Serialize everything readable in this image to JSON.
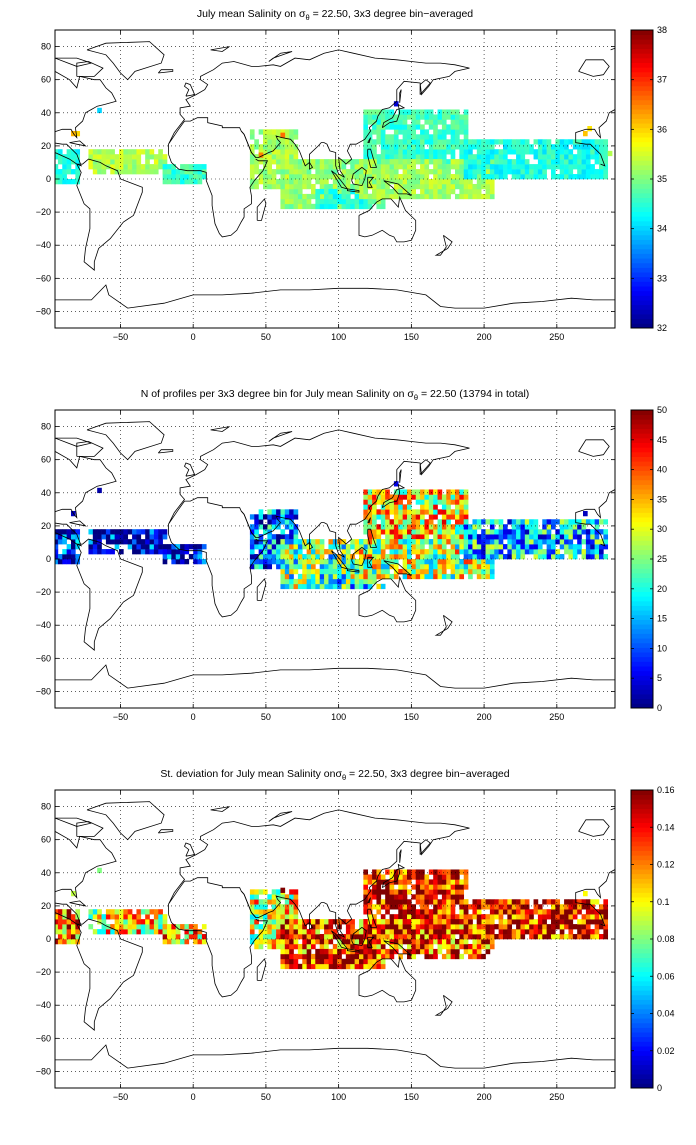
{
  "figure": {
    "background": "#ffffff"
  },
  "chart_data": [
    {
      "type": "heatmap",
      "title": {
        "prefix": "July mean Salinity on ",
        "sigma": "σ",
        "sub": "θ",
        "suffix": " = 22.50, 3x3 degree bin−averaged"
      },
      "xlabel": "",
      "ylabel": "",
      "xlim": [
        -95,
        290
      ],
      "ylim": [
        -90,
        90
      ],
      "xticks": [
        -50,
        0,
        50,
        100,
        150,
        200,
        250
      ],
      "yticks": [
        -80,
        -60,
        -40,
        -20,
        0,
        20,
        40,
        60,
        80
      ],
      "grid": true,
      "colormap": "jet",
      "clim": [
        32,
        38
      ],
      "colorbar_ticks": [
        32,
        33,
        34,
        35,
        36,
        37,
        38
      ],
      "legend": "colorbar right",
      "regions": [
        {
          "x": [
            -95,
            -78
          ],
          "y": [
            -1,
            16
          ],
          "value": 34.4
        },
        {
          "x": [
            -70,
            -20
          ],
          "y": [
            3,
            18
          ],
          "value": 35.3
        },
        {
          "x": [
            -20,
            8
          ],
          "y": [
            -1,
            7
          ],
          "value": 34.6
        },
        {
          "x": [
            40,
            70
          ],
          "y": [
            -5,
            28
          ],
          "value": 35.2
        },
        {
          "x": [
            60,
            130
          ],
          "y": [
            -18,
            10
          ],
          "value": 35.1
        },
        {
          "x": [
            85,
            122
          ],
          "y": [
            -18,
            -6
          ],
          "value": 34.5
        },
        {
          "x": [
            118,
            188
          ],
          "y": [
            10,
            40
          ],
          "value": 34.6
        },
        {
          "x": [
            115,
            205
          ],
          "y": [
            -12,
            12
          ],
          "value": 35.2
        },
        {
          "x": [
            188,
            285
          ],
          "y": [
            0,
            24
          ],
          "value": 34.4
        }
      ],
      "spots": [
        {
          "x": -84,
          "y": 26,
          "value": 36.2
        },
        {
          "x": -81,
          "y": 26,
          "value": 36.0
        },
        {
          "x": -66,
          "y": 40,
          "value": 34.0
        },
        {
          "x": 45,
          "y": 13,
          "value": 36.5
        },
        {
          "x": 60,
          "y": 25,
          "value": 36.6
        },
        {
          "x": 138,
          "y": 44,
          "value": 32.5
        },
        {
          "x": 268,
          "y": 26,
          "value": 36.1
        },
        {
          "x": 271,
          "y": 29,
          "value": 35.9
        },
        {
          "x": 285,
          "y": 14,
          "value": 35.3
        }
      ]
    },
    {
      "type": "heatmap",
      "title": {
        "prefix": "N of profiles per 3x3 degree bin for July mean Salinity on ",
        "sigma": "σ",
        "sub": "θ",
        "suffix": " = 22.50 (13794 in total)"
      },
      "xlabel": "",
      "ylabel": "",
      "xlim": [
        -95,
        290
      ],
      "ylim": [
        -90,
        90
      ],
      "xticks": [
        -50,
        0,
        50,
        100,
        150,
        200,
        250
      ],
      "yticks": [
        -80,
        -60,
        -40,
        -20,
        0,
        20,
        40,
        60,
        80
      ],
      "grid": true,
      "colormap": "jet",
      "clim": [
        0,
        50
      ],
      "colorbar_ticks": [
        0,
        5,
        10,
        15,
        20,
        25,
        30,
        35,
        40,
        45,
        50
      ],
      "legend": "colorbar right",
      "total_profiles": 13794,
      "regions": [
        {
          "x": [
            -95,
            -78
          ],
          "y": [
            -1,
            16
          ],
          "value": 6
        },
        {
          "x": [
            -70,
            -20
          ],
          "y": [
            3,
            18
          ],
          "value": 4
        },
        {
          "x": [
            -20,
            8
          ],
          "y": [
            -1,
            7
          ],
          "value": 4
        },
        {
          "x": [
            40,
            70
          ],
          "y": [
            -5,
            28
          ],
          "value": 12
        },
        {
          "x": [
            60,
            130
          ],
          "y": [
            -18,
            10
          ],
          "value": 24
        },
        {
          "x": [
            85,
            122
          ],
          "y": [
            -18,
            -6
          ],
          "value": 20
        },
        {
          "x": [
            118,
            188
          ],
          "y": [
            10,
            40
          ],
          "value": 32
        },
        {
          "x": [
            115,
            205
          ],
          "y": [
            -12,
            12
          ],
          "value": 28
        },
        {
          "x": [
            188,
            285
          ],
          "y": [
            0,
            24
          ],
          "value": 16
        }
      ],
      "spots": [
        {
          "x": -84,
          "y": 26,
          "value": 3
        },
        {
          "x": -66,
          "y": 40,
          "value": 2
        },
        {
          "x": 138,
          "y": 44,
          "value": 5
        },
        {
          "x": 268,
          "y": 26,
          "value": 3
        }
      ]
    },
    {
      "type": "heatmap",
      "title": {
        "prefix": "St. deviation for July mean Salinity on",
        "sigma": "σ",
        "sub": "θ",
        "suffix": " = 22.50, 3x3 degree bin−averaged"
      },
      "xlabel": "",
      "ylabel": "",
      "xlim": [
        -95,
        290
      ],
      "ylim": [
        -90,
        90
      ],
      "xticks": [
        -50,
        0,
        50,
        100,
        150,
        200,
        250
      ],
      "yticks": [
        -80,
        -60,
        -40,
        -20,
        0,
        20,
        40,
        60,
        80
      ],
      "grid": true,
      "colormap": "jet",
      "clim": [
        0,
        0.16
      ],
      "colorbar_ticks": [
        0,
        0.02,
        0.04,
        0.06,
        0.08,
        0.1,
        0.12,
        0.14,
        0.16
      ],
      "legend": "colorbar right",
      "regions": [
        {
          "x": [
            -95,
            -78
          ],
          "y": [
            -1,
            16
          ],
          "value": 0.12
        },
        {
          "x": [
            -70,
            -20
          ],
          "y": [
            3,
            18
          ],
          "value": 0.1
        },
        {
          "x": [
            -20,
            8
          ],
          "y": [
            -1,
            7
          ],
          "value": 0.11
        },
        {
          "x": [
            40,
            70
          ],
          "y": [
            -5,
            28
          ],
          "value": 0.1
        },
        {
          "x": [
            60,
            130
          ],
          "y": [
            -18,
            10
          ],
          "value": 0.13
        },
        {
          "x": [
            85,
            122
          ],
          "y": [
            -18,
            -6
          ],
          "value": 0.14
        },
        {
          "x": [
            118,
            188
          ],
          "y": [
            10,
            40
          ],
          "value": 0.14
        },
        {
          "x": [
            115,
            205
          ],
          "y": [
            -12,
            12
          ],
          "value": 0.13
        },
        {
          "x": [
            188,
            285
          ],
          "y": [
            0,
            24
          ],
          "value": 0.14
        }
      ],
      "spots": [
        {
          "x": -84,
          "y": 26,
          "value": 0.09
        },
        {
          "x": -66,
          "y": 40,
          "value": 0.08
        },
        {
          "x": 60,
          "y": 28,
          "value": 0.16
        },
        {
          "x": 268,
          "y": 26,
          "value": 0.1
        }
      ]
    }
  ]
}
